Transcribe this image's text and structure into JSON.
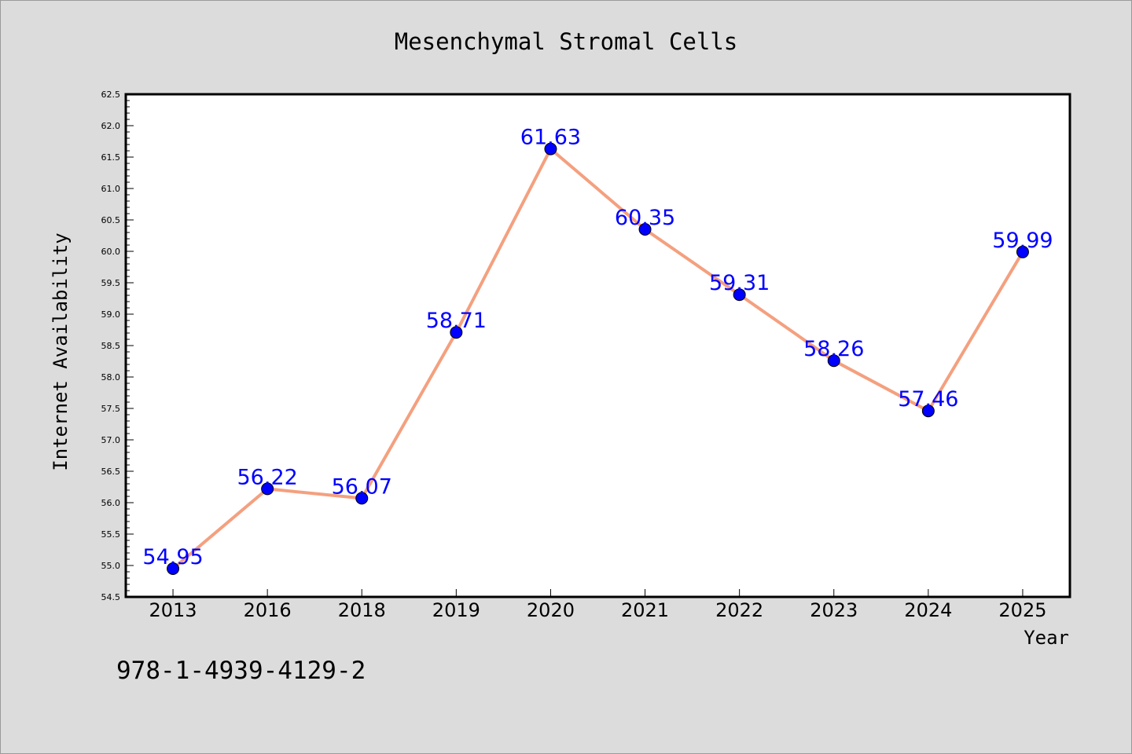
{
  "chart_data": {
    "type": "line",
    "title": "Mesenchymal Stromal Cells",
    "xlabel": "Year",
    "ylabel": "Internet Availability",
    "categories": [
      "2013",
      "2016",
      "2018",
      "2019",
      "2020",
      "2021",
      "2022",
      "2023",
      "2024",
      "2025"
    ],
    "series": [
      {
        "values": [
          54.95,
          56.22,
          56.07,
          58.71,
          61.63,
          60.35,
          59.31,
          58.26,
          57.46,
          59.99
        ],
        "data_labels": [
          "54.95",
          "56.22",
          "56.07",
          "58.71",
          "61.63",
          "60.35",
          "59.31",
          "58.26",
          "57.46",
          "59.99"
        ],
        "line_color": "#f4a07f",
        "marker_color": "#0000ff"
      }
    ],
    "ylim": [
      54.5,
      62.5
    ],
    "y_major_ticks": [
      "54.5",
      "55.0",
      "55.5",
      "56.0",
      "56.5",
      "57.0",
      "57.5",
      "58.0",
      "58.5",
      "59.0",
      "59.5",
      "60.0",
      "60.5",
      "61.0",
      "61.5",
      "62.0",
      "62.5"
    ],
    "grid": false,
    "legend": "none",
    "background_color": "#dcdcdc",
    "plot_background_color": "#ffffff"
  },
  "footnote": "978-1-4939-4129-2"
}
